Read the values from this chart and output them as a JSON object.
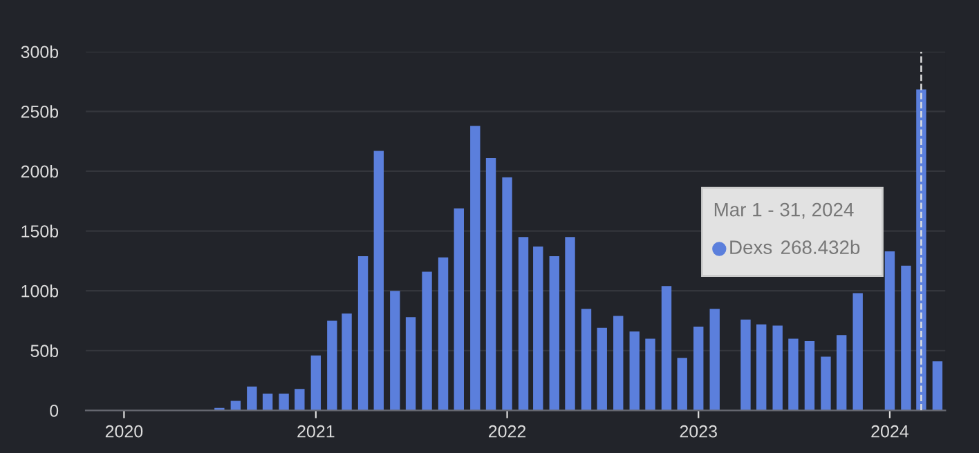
{
  "chart_data": {
    "type": "bar",
    "x": [
      "2020-01",
      "2020-02",
      "2020-03",
      "2020-04",
      "2020-05",
      "2020-06",
      "2020-07",
      "2020-08",
      "2020-09",
      "2020-10",
      "2020-11",
      "2020-12",
      "2021-01",
      "2021-02",
      "2021-03",
      "2021-04",
      "2021-05",
      "2021-06",
      "2021-07",
      "2021-08",
      "2021-09",
      "2021-10",
      "2021-11",
      "2021-12",
      "2022-01",
      "2022-02",
      "2022-03",
      "2022-04",
      "2022-05",
      "2022-06",
      "2022-07",
      "2022-08",
      "2022-09",
      "2022-10",
      "2022-11",
      "2022-12",
      "2023-01",
      "2023-02",
      "2023-03",
      "2023-04",
      "2023-05",
      "2023-06",
      "2023-07",
      "2023-08",
      "2023-09",
      "2023-10",
      "2023-11",
      "2023-12",
      "2024-01",
      "2024-02",
      "2024-03",
      "2024-04"
    ],
    "series": [
      {
        "name": "Dexs",
        "color": "#5b7fdc",
        "values": [
          0,
          0,
          0,
          0,
          0,
          0,
          2,
          8,
          20,
          14,
          14,
          18,
          46,
          75,
          81,
          129,
          217,
          100,
          78,
          116,
          128,
          169,
          238,
          211,
          195,
          145,
          137,
          129,
          145,
          85,
          69,
          79,
          66,
          60,
          104,
          44,
          70,
          85,
          null,
          76,
          72,
          71,
          60,
          58,
          45,
          63,
          98,
          null,
          133,
          121,
          268.432,
          41
        ]
      }
    ],
    "xlim": [
      "2019-10-20",
      "2024-04-16"
    ],
    "xticks": [
      {
        "value": "2020-01",
        "label": "2020"
      },
      {
        "value": "2021-01",
        "label": "2021"
      },
      {
        "value": "2022-01",
        "label": "2022"
      },
      {
        "value": "2023-01",
        "label": "2023"
      },
      {
        "value": "2024-01",
        "label": "2024"
      }
    ],
    "ylim": [
      0,
      300
    ],
    "yticks": [
      0,
      {
        "value": 50,
        "label": "50b"
      },
      {
        "value": 100,
        "label": "100b"
      },
      {
        "value": 150,
        "label": "150b"
      },
      {
        "value": 200,
        "label": "200b"
      },
      {
        "value": 250,
        "label": "250b"
      },
      {
        "value": 300,
        "label": "300b"
      }
    ],
    "grid": "y",
    "ref_lines": [
      {
        "axis": "x",
        "value": "2024-03",
        "label": null,
        "color": "#e0e0e0",
        "line_style": "dashed"
      }
    ],
    "annotations": [
      "Mar 1 - 31, 2024",
      "268.432b"
    ]
  }
}
